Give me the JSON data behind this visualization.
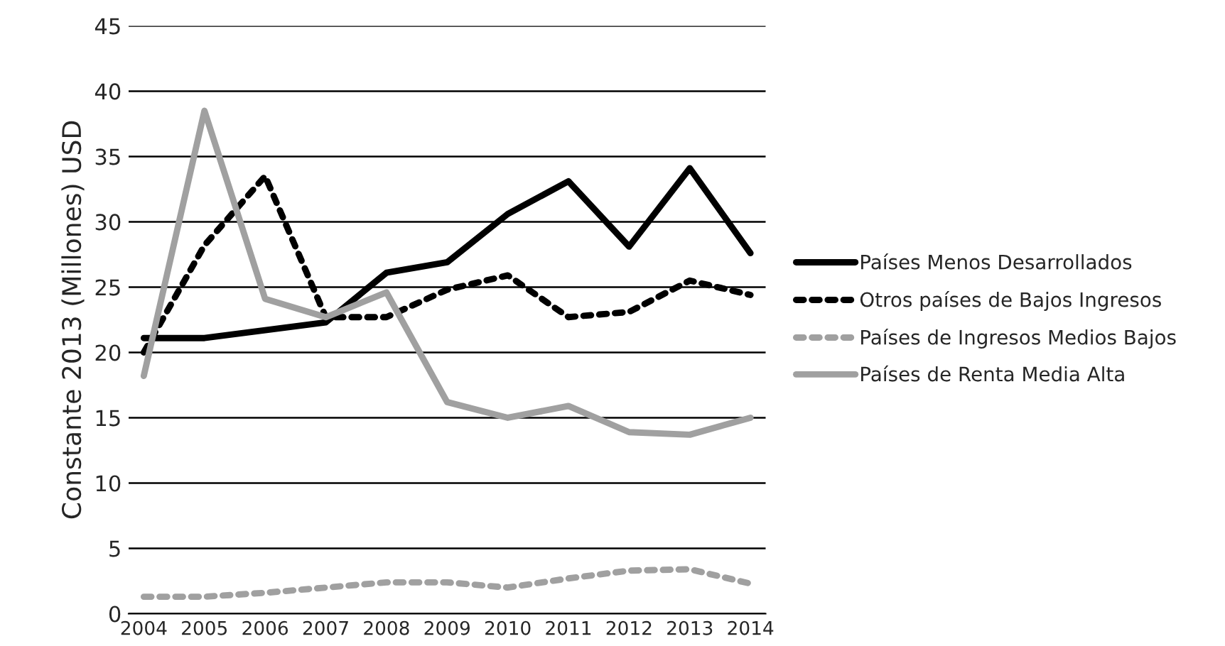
{
  "chart_data": {
    "type": "line",
    "ylabel": "Constante 2013 (Millones) USD",
    "categories": [
      "2004",
      "2005",
      "2006",
      "2007",
      "2008",
      "2009",
      "2010",
      "2011",
      "2012",
      "2013",
      "2014"
    ],
    "series": [
      {
        "name": "Países Menos Desarrollados",
        "color": "#000000",
        "line_style": "solid",
        "values": [
          21.1,
          21.1,
          21.7,
          22.3,
          26.1,
          26.9,
          30.6,
          33.1,
          28.1,
          34.1,
          27.6
        ]
      },
      {
        "name": "Otros países de Bajos Ingresos",
        "color": "#000000",
        "line_style": "dotted",
        "values": [
          20.0,
          28.2,
          33.5,
          22.7,
          22.7,
          24.8,
          25.9,
          22.7,
          23.1,
          25.5,
          24.4
        ]
      },
      {
        "name": "Países de Ingresos Medios Bajos",
        "color": "#a0a0a0",
        "line_style": "dotted",
        "values": [
          1.3,
          1.3,
          1.6,
          2.0,
          2.4,
          2.4,
          2.0,
          2.7,
          3.3,
          3.4,
          2.3
        ]
      },
      {
        "name": "Países de Renta Media Alta",
        "color": "#a0a0a0",
        "line_style": "solid",
        "values": [
          18.2,
          38.5,
          24.1,
          22.7,
          24.6,
          16.2,
          15.0,
          15.9,
          13.9,
          13.7,
          15.0
        ]
      }
    ],
    "ylim": [
      0,
      45
    ],
    "yticks": [
      0,
      5,
      10,
      15,
      20,
      25,
      30,
      35,
      40,
      45
    ],
    "grid": "y",
    "legend": "right"
  }
}
